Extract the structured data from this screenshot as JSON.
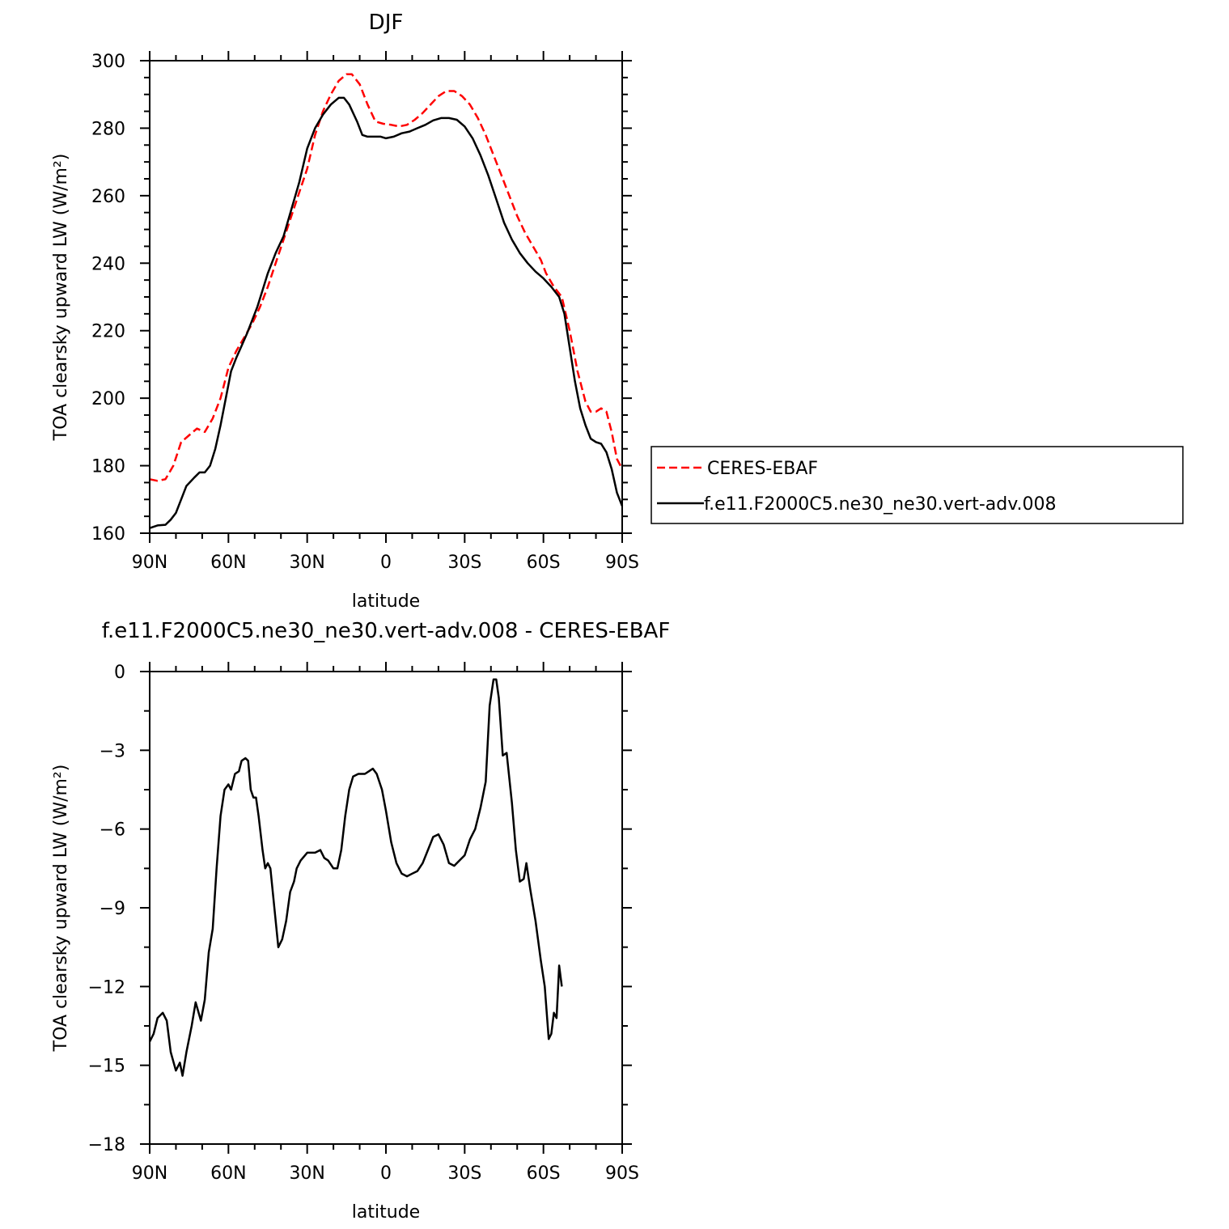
{
  "chart_data": [
    {
      "type": "line",
      "title": "DJF",
      "xlabel": "latitude",
      "ylabel": "TOA clearsky upward LW (W/m²)",
      "xlim": [
        90,
        -90
      ],
      "ylim": [
        160,
        300
      ],
      "x_tick_labels": [
        "90N",
        "60N",
        "30N",
        "0",
        "30S",
        "60S",
        "90S"
      ],
      "y_tick_labels": [
        "160",
        "180",
        "200",
        "220",
        "240",
        "260",
        "280",
        "300"
      ],
      "legend_position": "right",
      "series": [
        {
          "name": "CERES-EBAF",
          "color": "#ff0000",
          "dash": "dashed",
          "points": [
            [
              90,
              176
            ],
            [
              87,
              175.5
            ],
            [
              84,
              176
            ],
            [
              81,
              180
            ],
            [
              78,
              187
            ],
            [
              75,
              189
            ],
            [
              72,
              191
            ],
            [
              69,
              190
            ],
            [
              66,
              194
            ],
            [
              63,
              200
            ],
            [
              60,
              209
            ],
            [
              57,
              214
            ],
            [
              54,
              218
            ],
            [
              51,
              222
            ],
            [
              48,
              227
            ],
            [
              45,
              233
            ],
            [
              42,
              240
            ],
            [
              39,
              247
            ],
            [
              36,
              254
            ],
            [
              33,
              261
            ],
            [
              30,
              268
            ],
            [
              27,
              278
            ],
            [
              24,
              285
            ],
            [
              21,
              290
            ],
            [
              18,
              294
            ],
            [
              15,
              296
            ],
            [
              13,
              296
            ],
            [
              10,
              293
            ],
            [
              7,
              287
            ],
            [
              4,
              282
            ],
            [
              1,
              281.3
            ],
            [
              -2,
              281
            ],
            [
              -5,
              280.5
            ],
            [
              -8,
              281
            ],
            [
              -11,
              282.5
            ],
            [
              -14,
              284.5
            ],
            [
              -17,
              287
            ],
            [
              -20,
              289.5
            ],
            [
              -23,
              291
            ],
            [
              -26,
              291
            ],
            [
              -29,
              289.5
            ],
            [
              -32,
              287
            ],
            [
              -35,
              283
            ],
            [
              -38,
              278
            ],
            [
              -41,
              272
            ],
            [
              -44,
              266
            ],
            [
              -47,
              260
            ],
            [
              -50,
              254
            ],
            [
              -53,
              249
            ],
            [
              -56,
              245
            ],
            [
              -59,
              241
            ],
            [
              -61,
              237
            ],
            [
              -64,
              233
            ],
            [
              -67,
              230
            ],
            [
              -70,
              220
            ],
            [
              -73,
              208
            ],
            [
              -76,
              199
            ],
            [
              -78,
              196
            ],
            [
              -80,
              196
            ],
            [
              -82,
              197
            ],
            [
              -84,
              196
            ],
            [
              -86,
              190
            ],
            [
              -88,
              182
            ],
            [
              -90,
              179
            ]
          ]
        },
        {
          "name": "f.e11.F2000C5.ne30_ne30.vert-adv.008",
          "color": "#000000",
          "dash": "solid",
          "points": [
            [
              90,
              161.5
            ],
            [
              87,
              162.3
            ],
            [
              84,
              162.5
            ],
            [
              82,
              164
            ],
            [
              80,
              166
            ],
            [
              78,
              170
            ],
            [
              76,
              174
            ],
            [
              73,
              176.5
            ],
            [
              71,
              178
            ],
            [
              69,
              178
            ],
            [
              67,
              180
            ],
            [
              65,
              185
            ],
            [
              63,
              192
            ],
            [
              61,
              200
            ],
            [
              59,
              208
            ],
            [
              57,
              212
            ],
            [
              55,
              215.5
            ],
            [
              53,
              219
            ],
            [
              51,
              223
            ],
            [
              49,
              227
            ],
            [
              47,
              232
            ],
            [
              45,
              237
            ],
            [
              42,
              243
            ],
            [
              39,
              248
            ],
            [
              36,
              256
            ],
            [
              33,
              264
            ],
            [
              30,
              274
            ],
            [
              27,
              280
            ],
            [
              24,
              284
            ],
            [
              21,
              287
            ],
            [
              18,
              289
            ],
            [
              16,
              289
            ],
            [
              14,
              287
            ],
            [
              11,
              282
            ],
            [
              9,
              278
            ],
            [
              7,
              277.5
            ],
            [
              5,
              277.5
            ],
            [
              2,
              277.5
            ],
            [
              0,
              277
            ],
            [
              -3,
              277.5
            ],
            [
              -6,
              278.5
            ],
            [
              -9,
              279
            ],
            [
              -12,
              280
            ],
            [
              -15,
              281
            ],
            [
              -18,
              282.3
            ],
            [
              -21,
              283
            ],
            [
              -24,
              283
            ],
            [
              -27,
              282.5
            ],
            [
              -30,
              280.5
            ],
            [
              -33,
              277
            ],
            [
              -36,
              272
            ],
            [
              -39,
              266
            ],
            [
              -42,
              259
            ],
            [
              -45,
              252
            ],
            [
              -48,
              247
            ],
            [
              -51,
              243
            ],
            [
              -54,
              240
            ],
            [
              -57,
              237.5
            ],
            [
              -60,
              235.5
            ],
            [
              -63,
              233
            ],
            [
              -66,
              230
            ],
            [
              -68,
              225
            ],
            [
              -70,
              215
            ],
            [
              -72,
              205
            ],
            [
              -74,
              197
            ],
            [
              -76,
              192
            ],
            [
              -78,
              188
            ],
            [
              -80,
              187
            ],
            [
              -82,
              186.5
            ],
            [
              -84,
              184
            ],
            [
              -86,
              179
            ],
            [
              -88,
              172
            ],
            [
              -90,
              168
            ]
          ]
        }
      ]
    },
    {
      "type": "line",
      "title": "f.e11.F2000C5.ne30_ne30.vert-adv.008 - CERES-EBAF",
      "xlabel": "latitude",
      "ylabel": "TOA clearsky upward LW (W/m²)",
      "xlim": [
        90,
        -90
      ],
      "ylim": [
        -18,
        0
      ],
      "x_tick_labels": [
        "90N",
        "60N",
        "30N",
        "0",
        "30S",
        "60S",
        "90S"
      ],
      "y_tick_labels": [
        "-18",
        "-15",
        "-12",
        "-9",
        "-6",
        "-3",
        "0"
      ],
      "series": [
        {
          "color": "#000000",
          "dash": "solid",
          "points": [
            [
              90,
              -14.1
            ],
            [
              88.5,
              -13.8
            ],
            [
              87,
              -13.2
            ],
            [
              85,
              -13
            ],
            [
              83.5,
              -13.3
            ],
            [
              82,
              -14.5
            ],
            [
              80,
              -15.2
            ],
            [
              78.5,
              -14.9
            ],
            [
              77.5,
              -15.4
            ],
            [
              76,
              -14.5
            ],
            [
              74,
              -13.5
            ],
            [
              72.5,
              -12.6
            ],
            [
              70.5,
              -13.3
            ],
            [
              69,
              -12.5
            ],
            [
              67.5,
              -10.7
            ],
            [
              66,
              -9.8
            ],
            [
              64.5,
              -7.5
            ],
            [
              63,
              -5.5
            ],
            [
              61.5,
              -4.5
            ],
            [
              60,
              -4.3
            ],
            [
              59,
              -4.5
            ],
            [
              57.5,
              -3.9
            ],
            [
              56,
              -3.8
            ],
            [
              55,
              -3.4
            ],
            [
              53.5,
              -3.3
            ],
            [
              52.5,
              -3.4
            ],
            [
              51.5,
              -4.5
            ],
            [
              50.5,
              -4.8
            ],
            [
              49.5,
              -4.8
            ],
            [
              48.5,
              -5.5
            ],
            [
              47,
              -6.8
            ],
            [
              46,
              -7.5
            ],
            [
              45,
              -7.3
            ],
            [
              44,
              -7.5
            ],
            [
              42.5,
              -9
            ],
            [
              41,
              -10.5
            ],
            [
              39.5,
              -10.2
            ],
            [
              38,
              -9.5
            ],
            [
              36.5,
              -8.4
            ],
            [
              35,
              -8
            ],
            [
              34,
              -7.5
            ],
            [
              32.5,
              -7.2
            ],
            [
              30,
              -6.9
            ],
            [
              27,
              -6.9
            ],
            [
              25,
              -6.8
            ],
            [
              23.5,
              -7.1
            ],
            [
              22,
              -7.2
            ],
            [
              20,
              -7.5
            ],
            [
              18.5,
              -7.5
            ],
            [
              17,
              -6.8
            ],
            [
              15.5,
              -5.5
            ],
            [
              14,
              -4.5
            ],
            [
              12.5,
              -4
            ],
            [
              10.5,
              -3.9
            ],
            [
              8,
              -3.9
            ],
            [
              6.5,
              -3.8
            ],
            [
              5,
              -3.7
            ],
            [
              3.5,
              -3.9
            ],
            [
              1.5,
              -4.5
            ],
            [
              0,
              -5.3
            ],
            [
              -2,
              -6.5
            ],
            [
              -4,
              -7.3
            ],
            [
              -6,
              -7.7
            ],
            [
              -8,
              -7.8
            ],
            [
              -10,
              -7.7
            ],
            [
              -12,
              -7.6
            ],
            [
              -14,
              -7.3
            ],
            [
              -16,
              -6.8
            ],
            [
              -18,
              -6.3
            ],
            [
              -20,
              -6.2
            ],
            [
              -22,
              -6.6
            ],
            [
              -24,
              -7.3
            ],
            [
              -26,
              -7.4
            ],
            [
              -28,
              -7.2
            ],
            [
              -30,
              -7
            ],
            [
              -32,
              -6.4
            ],
            [
              -34,
              -6
            ],
            [
              -36,
              -5.2
            ],
            [
              -38,
              -4.2
            ],
            [
              -39.5,
              -1.3
            ],
            [
              -41,
              -0.3
            ],
            [
              -42,
              -0.3
            ],
            [
              -43,
              -1
            ],
            [
              -44.5,
              -3.2
            ],
            [
              -46,
              -3.1
            ],
            [
              -48,
              -5
            ],
            [
              -49.5,
              -6.8
            ],
            [
              -51,
              -8
            ],
            [
              -52.5,
              -7.9
            ],
            [
              -53.5,
              -7.3
            ],
            [
              -55,
              -8.3
            ],
            [
              -57,
              -9.5
            ],
            [
              -59,
              -11
            ],
            [
              -60.5,
              -12
            ],
            [
              -62,
              -14
            ],
            [
              -63,
              -13.8
            ],
            [
              -64,
              -13
            ],
            [
              -65,
              -13.2
            ],
            [
              -66,
              -11.2
            ],
            [
              -67,
              -12
            ]
          ]
        }
      ]
    }
  ]
}
